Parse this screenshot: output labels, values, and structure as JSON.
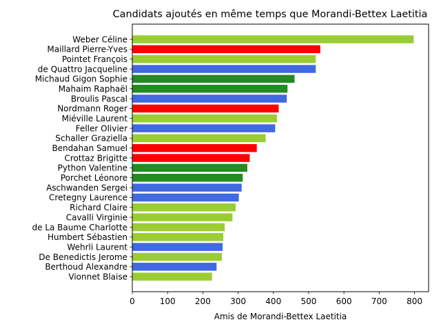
{
  "chart_data": {
    "type": "bar",
    "orientation": "horizontal",
    "title": "Candidats ajoutés en même temps que Morandi-Bettex Laetitia",
    "xlabel": "Amis de Morandi-Bettex Laetitia",
    "ylabel": "",
    "xlim": [
      0,
      840
    ],
    "xticks": [
      "0",
      "100",
      "200",
      "300",
      "400",
      "500",
      "600",
      "700",
      "800"
    ],
    "grid": false,
    "legend": "none",
    "categories": [
      "Weber Céline",
      "Maillard Pierre-Yves",
      "Pointet François",
      "de Quattro Jacqueline",
      "Michaud Gigon Sophie",
      "Mahaim Raphaël",
      "Broulis Pascal",
      "Nordmann Roger",
      "Miéville Laurent",
      "Feller Olivier",
      "Schaller Graziella",
      "Bendahan Samuel",
      "Crottaz Brigitte",
      "Python Valentine",
      "Porchet Léonore",
      "Aschwanden Sergei",
      "Cretegny Laurence",
      "Richard Claire",
      "Cavalli Virginie",
      "de La Baume Charlotte",
      "Humbert Sébastien",
      "Wehrli Laurent",
      "De Benedictis Jerome",
      "Berthoud Alexandre",
      "Vionnet Blaise"
    ],
    "values": [
      798,
      533,
      520,
      520,
      460,
      440,
      438,
      415,
      410,
      405,
      378,
      353,
      333,
      326,
      313,
      310,
      302,
      293,
      284,
      262,
      258,
      256,
      254,
      239,
      226
    ],
    "colors": [
      "#9acd32",
      "#ff0000",
      "#9acd32",
      "#4169e1",
      "#228b22",
      "#228b22",
      "#4169e1",
      "#ff0000",
      "#9acd32",
      "#4169e1",
      "#9acd32",
      "#ff0000",
      "#ff0000",
      "#228b22",
      "#228b22",
      "#4169e1",
      "#4169e1",
      "#9acd32",
      "#9acd32",
      "#9acd32",
      "#9acd32",
      "#4169e1",
      "#9acd32",
      "#4169e1",
      "#9acd32"
    ]
  }
}
